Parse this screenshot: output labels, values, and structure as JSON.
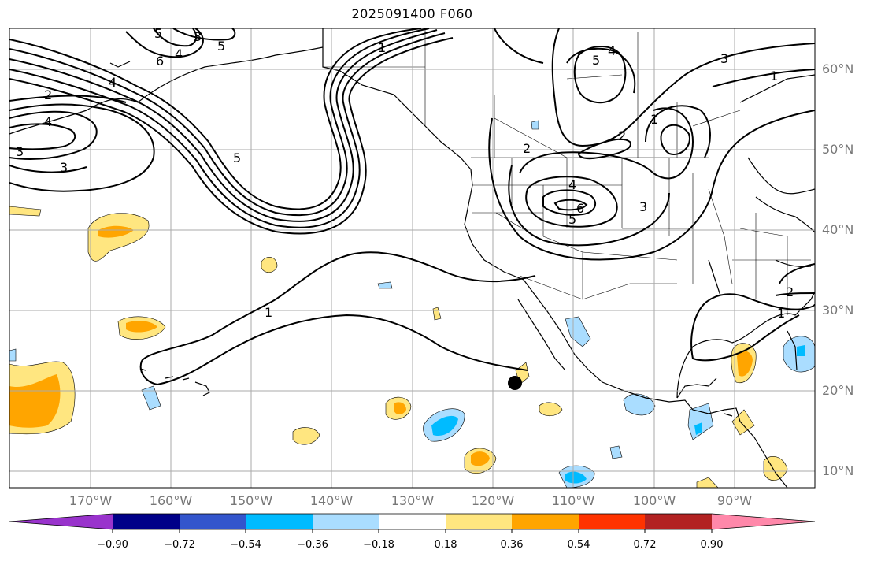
{
  "title": "2025091400 F060",
  "lon_labels": [
    "170°W",
    "160°W",
    "150°W",
    "140°W",
    "130°W",
    "120°W",
    "110°W",
    "100°W",
    "90°W"
  ],
  "lat_labels": [
    "60°N",
    "50°N",
    "40°N",
    "30°N",
    "20°N",
    "10°N"
  ],
  "colorbar": {
    "ticks": [
      "−0.90",
      "−0.72",
      "−0.54",
      "−0.36",
      "−0.18",
      "0.18",
      "0.36",
      "0.54",
      "0.72",
      "0.90"
    ],
    "colors": [
      "#9933cc",
      "#000088",
      "#3355cc",
      "#00bbff",
      "#aaddff",
      "#ffffff",
      "#ffe680",
      "#ffa500",
      "#ff3300",
      "#b22222",
      "#ff88aa"
    ]
  },
  "contour_labels": [
    "3",
    "3",
    "4",
    "5",
    "6",
    "4",
    "2",
    "4",
    "3",
    "5",
    "1",
    "1",
    "5",
    "4",
    "3",
    "1",
    "2",
    "2",
    "4",
    "5",
    "3",
    "6",
    "5",
    "1",
    "2",
    "1"
  ],
  "marker": {
    "label": "storm-position",
    "lon": -116.8,
    "lat": 21.0
  }
}
